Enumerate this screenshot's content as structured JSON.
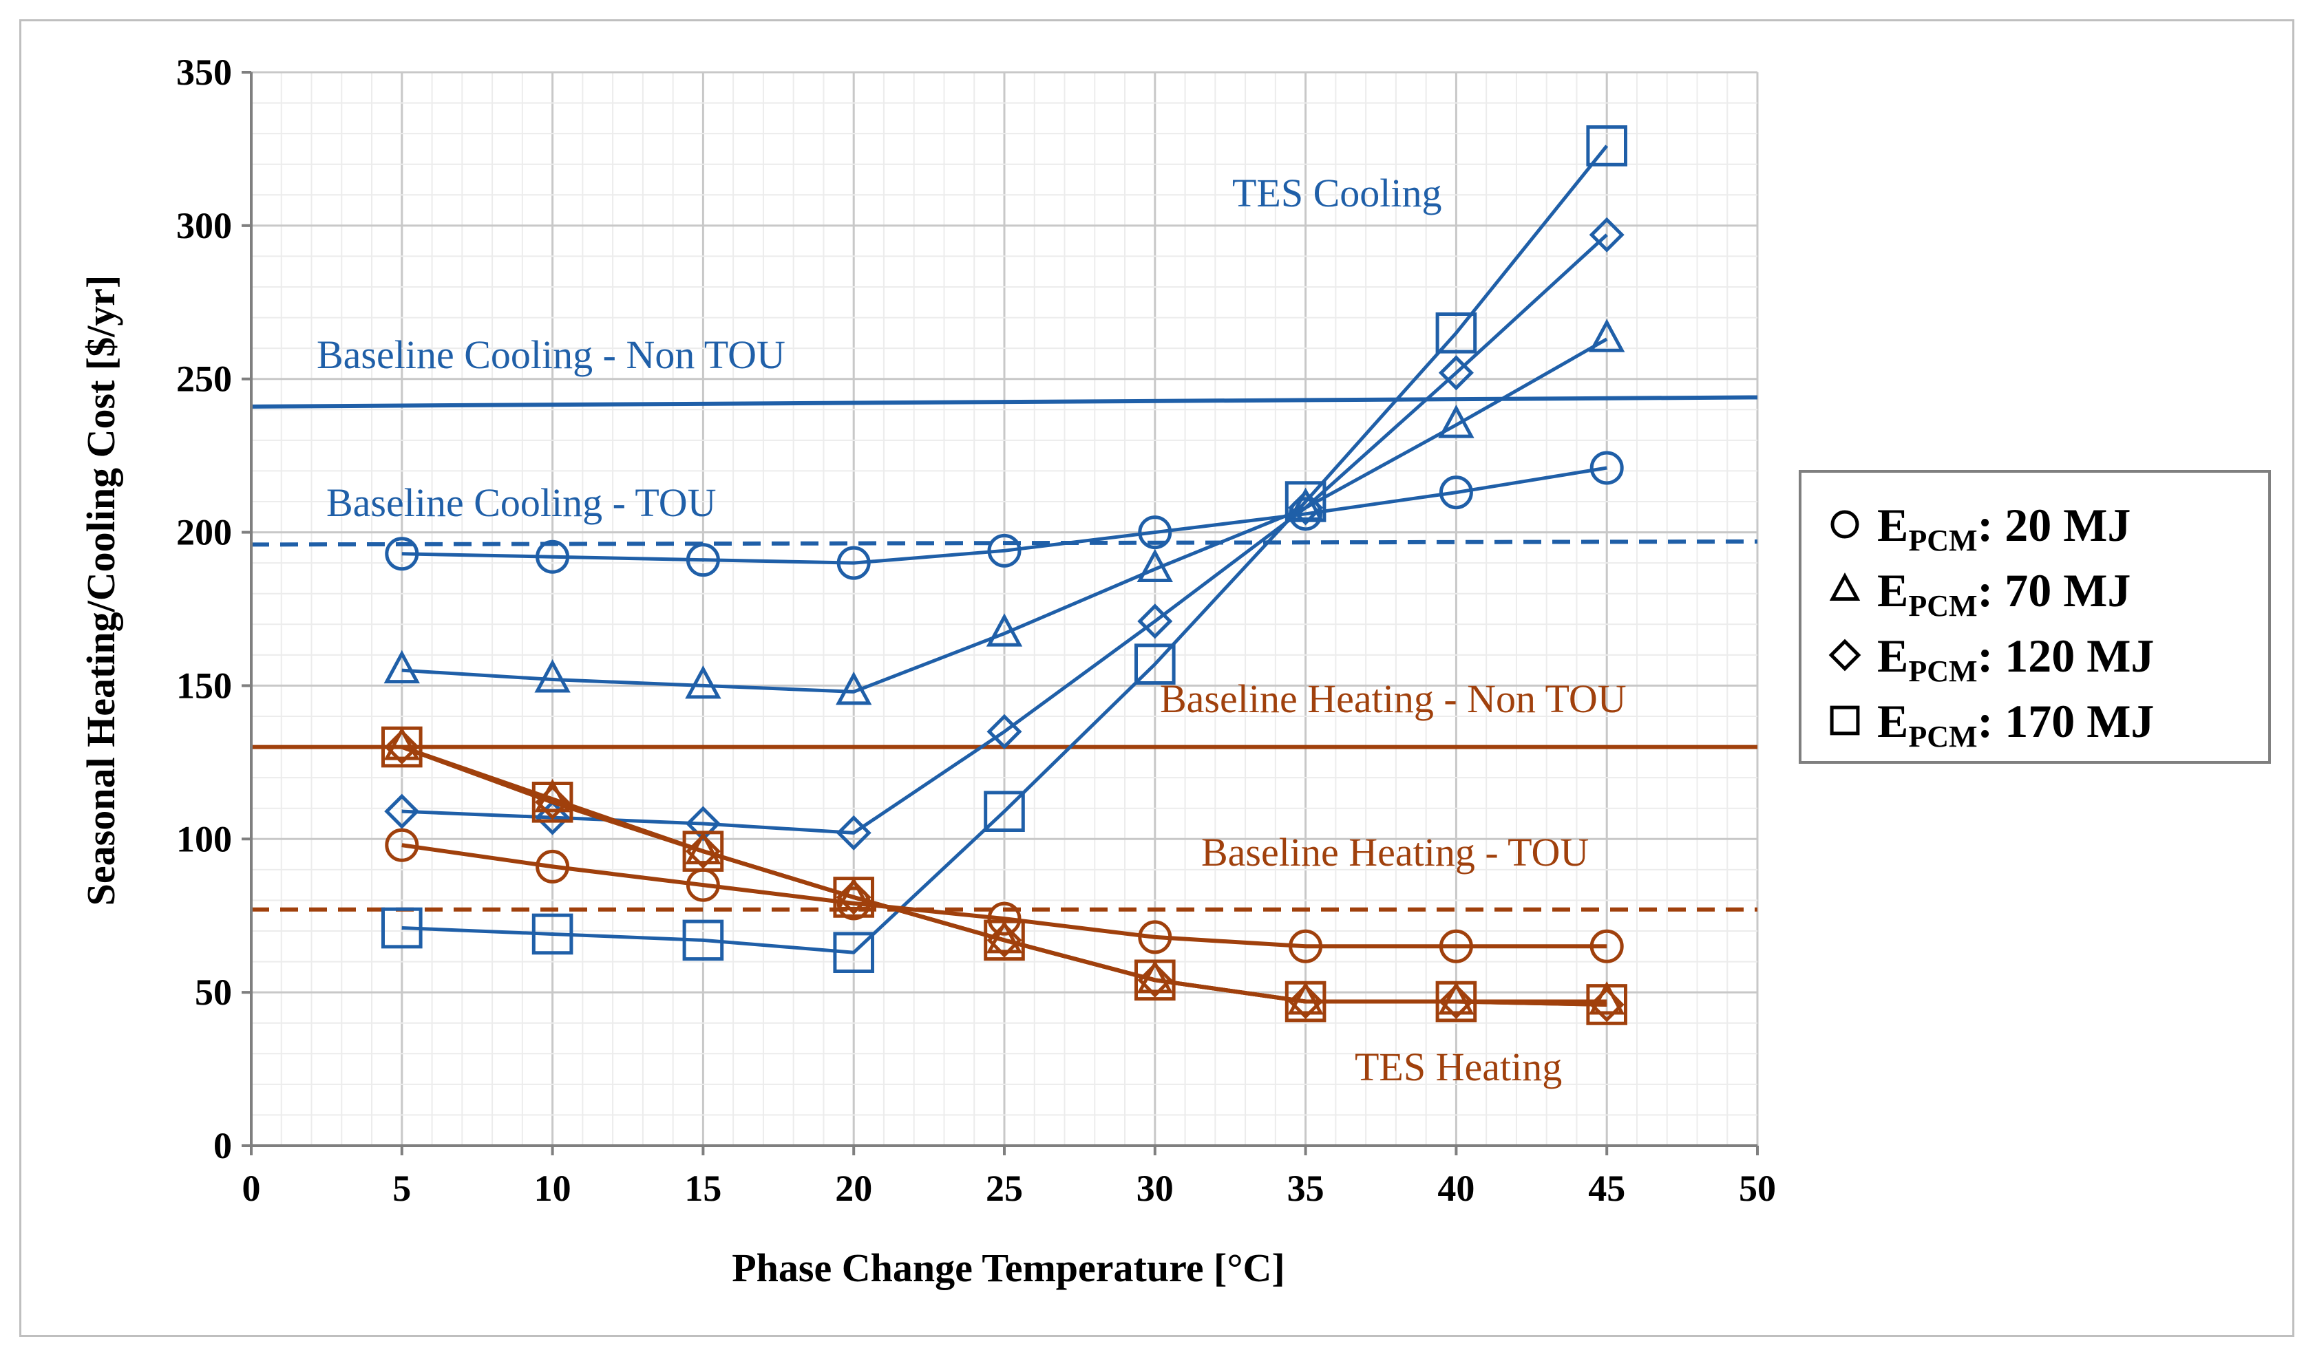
{
  "chart_data": {
    "type": "line",
    "xlabel": "Phase Change Temperature [°C]",
    "ylabel": "Seasonal Heating/Cooling Cost [$/yr]",
    "xlim": [
      0,
      50
    ],
    "ylim": [
      0,
      350
    ],
    "xticks": [
      0,
      5,
      10,
      15,
      20,
      25,
      30,
      35,
      40,
      45,
      50
    ],
    "yticks": [
      0,
      50,
      100,
      150,
      200,
      250,
      300,
      350
    ],
    "grid": true,
    "legend_position": "right",
    "x": [
      5,
      10,
      15,
      20,
      25,
      30,
      35,
      40,
      45
    ],
    "colors": {
      "cooling": "#1f5fa8",
      "heating": "#a0400c"
    },
    "series": [
      {
        "group": "cooling",
        "marker": "circle",
        "values": [
          193,
          192,
          191,
          190,
          194,
          200,
          206,
          213,
          221
        ]
      },
      {
        "group": "cooling",
        "marker": "triangle",
        "values": [
          155,
          152,
          150,
          148,
          167,
          188,
          208,
          235,
          263
        ]
      },
      {
        "group": "cooling",
        "marker": "diamond",
        "values": [
          109,
          107,
          105,
          102,
          135,
          171,
          208,
          252,
          297
        ]
      },
      {
        "group": "cooling",
        "marker": "square",
        "values": [
          71,
          69,
          67,
          63,
          109,
          157,
          210,
          265,
          326
        ]
      },
      {
        "group": "heating",
        "marker": "circle",
        "values": [
          98,
          91,
          85,
          79,
          74,
          68,
          65,
          65,
          65
        ]
      },
      {
        "group": "heating",
        "marker": "triangle",
        "values": [
          130,
          113,
          96,
          81,
          67,
          54,
          47,
          47,
          47
        ]
      },
      {
        "group": "heating",
        "marker": "diamond",
        "values": [
          130,
          112,
          96,
          81,
          67,
          54,
          47,
          47,
          46
        ]
      },
      {
        "group": "heating",
        "marker": "square",
        "values": [
          130,
          112,
          96,
          81,
          67,
          54,
          47,
          47,
          46
        ]
      }
    ],
    "baselines": [
      {
        "group": "cooling",
        "style": "solid",
        "y_start": 241,
        "y_end": 244
      },
      {
        "group": "cooling",
        "style": "dashed",
        "y_start": 196,
        "y_end": 197
      },
      {
        "group": "heating",
        "style": "solid",
        "y_start": 130,
        "y_end": 130
      },
      {
        "group": "heating",
        "style": "dashed",
        "y_start": 77,
        "y_end": 77
      }
    ],
    "annotations": [
      {
        "text": "TES Cooling",
        "group": "cooling"
      },
      {
        "text": "Baseline Cooling - Non TOU",
        "group": "cooling"
      },
      {
        "text": "Baseline Cooling - TOU",
        "group": "cooling"
      },
      {
        "text": "Baseline Heating - Non TOU",
        "group": "heating"
      },
      {
        "text": "Baseline Heating - TOU",
        "group": "heating"
      },
      {
        "text": "TES Heating",
        "group": "heating"
      }
    ],
    "legend": [
      {
        "marker": "circle",
        "label": "E",
        "sub": "PCM",
        "value": ": 20 MJ"
      },
      {
        "marker": "triangle",
        "label": "E",
        "sub": "PCM",
        "value": ": 70 MJ"
      },
      {
        "marker": "diamond",
        "label": "E",
        "sub": "PCM",
        "value": ": 120 MJ"
      },
      {
        "marker": "square",
        "label": "E",
        "sub": "PCM",
        "value": ": 170 MJ"
      }
    ]
  }
}
